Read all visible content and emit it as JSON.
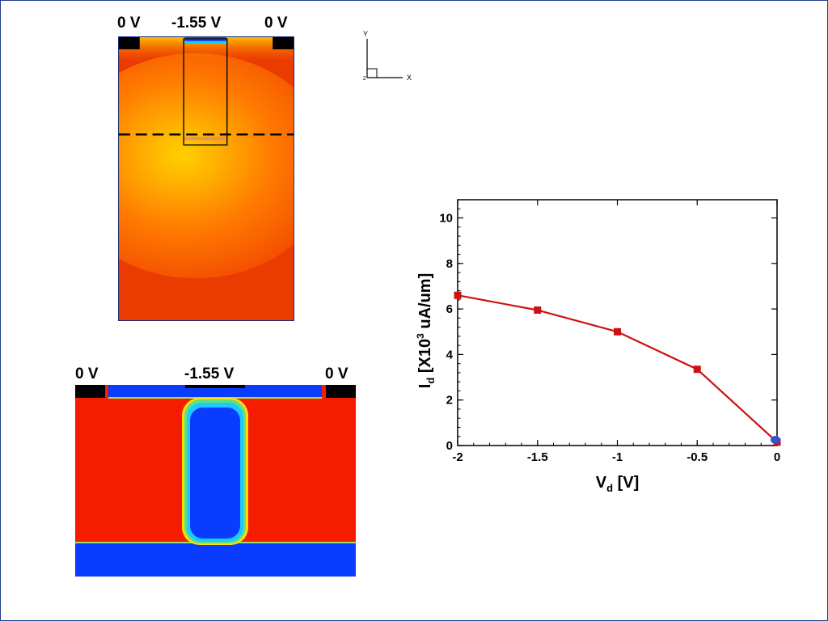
{
  "top_device": {
    "left_contact_voltage": "0 V",
    "gate_voltage": "-1.55 V",
    "right_contact_voltage": "0 V",
    "colormap": "red-yellow"
  },
  "bottom_device": {
    "left_contact_voltage": "0 V",
    "gate_voltage": "-1.55 V",
    "right_contact_voltage": "0 V",
    "colormap": "red-blue"
  },
  "axes_triad": {
    "y_label": "Y",
    "x_label": "X",
    "z_label": "Z"
  },
  "chart_data": {
    "type": "line",
    "xlabel_main": "V",
    "xlabel_sub": "d",
    "xlabel_unit": " [V]",
    "ylabel_main": "I",
    "ylabel_sub": "d",
    "ylabel_unit_pre": " [X10",
    "ylabel_exp": "3",
    "ylabel_unit_post": " uA/um]",
    "xlim": [
      -2,
      0
    ],
    "ylim": [
      0,
      10.8
    ],
    "xticks": [
      -2,
      -1.5,
      -1,
      -0.5,
      0
    ],
    "xtick_labels": [
      "-2",
      "-1.5",
      "-1",
      "-0.5",
      "0"
    ],
    "yticks": [
      0,
      2,
      4,
      6,
      8,
      10
    ],
    "ytick_labels": [
      "0",
      "2",
      "4",
      "6",
      "8",
      "10"
    ],
    "series": [
      {
        "color": "#cc1111",
        "marker": "square",
        "x": [
          -2,
          -1.5,
          -1,
          -0.5,
          0
        ],
        "y": [
          6.6,
          5.95,
          5.0,
          3.35,
          0.15
        ]
      }
    ],
    "highlight_point": {
      "x": 0,
      "y": 0.25,
      "color": "#3355cc"
    }
  }
}
